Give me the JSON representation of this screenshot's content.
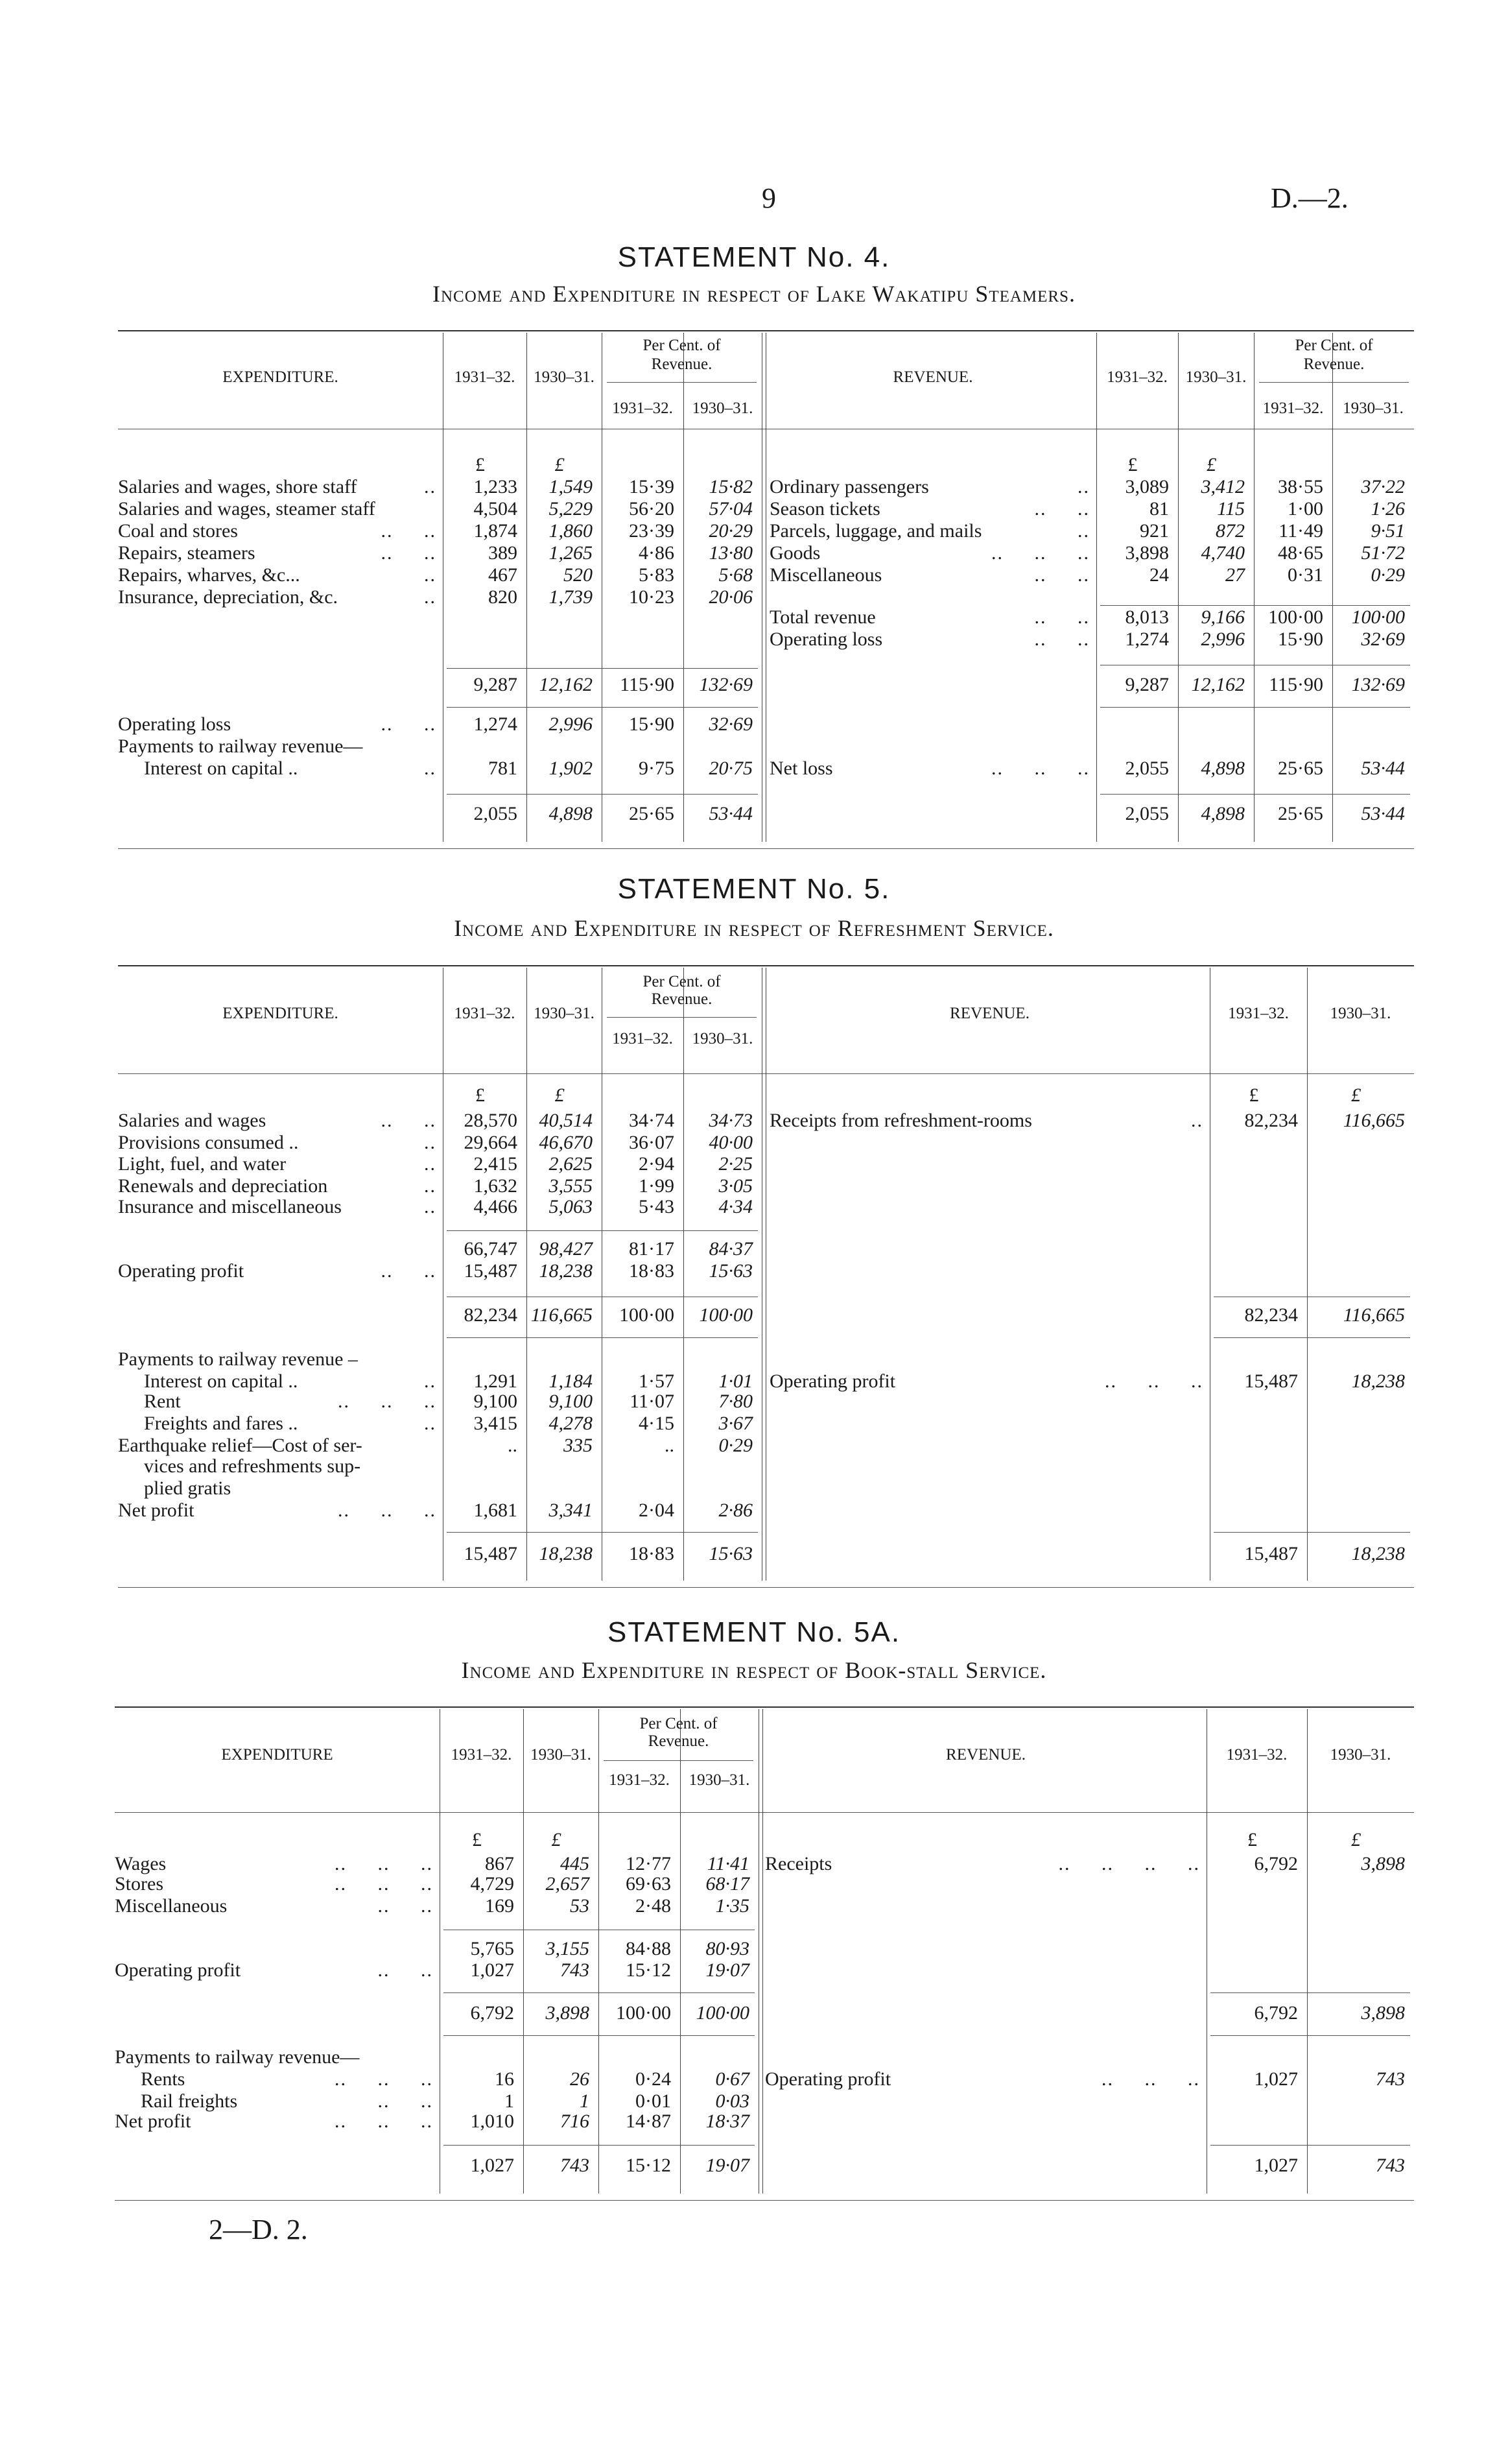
{
  "page": {
    "number": "9",
    "ref": "D.—2.",
    "footer": "2—D. 2."
  },
  "statements": [
    {
      "title": "STATEMENT No. 4.",
      "subtitle": "Income and Expenditure in respect of Lake Wakatipu Steamers.",
      "left": {
        "heading": "EXPENDITURE.",
        "years": [
          "1931–32.",
          "1930–31."
        ],
        "percent_heading": [
          "Per Cent. of",
          "Revenue."
        ],
        "percent_years": [
          "1931–32.",
          "1930–31."
        ],
        "rows": [
          {
            "label": "",
            "leader": "",
            "values": [
              "£",
              "£",
              "",
              ""
            ]
          },
          {
            "label": "Salaries and wages, shore staff",
            "leader": "..",
            "values": [
              "1,233",
              "1,549",
              "15·39",
              "15·82"
            ]
          },
          {
            "label": "Salaries and wages, steamer staff",
            "leader": "",
            "values": [
              "4,504",
              "5,229",
              "56·20",
              "57·04"
            ]
          },
          {
            "label": "Coal and stores",
            "leader": "..     ..",
            "values": [
              "1,874",
              "1,860",
              "23·39",
              "20·29"
            ]
          },
          {
            "label": "Repairs, steamers",
            "leader": "..     ..",
            "values": [
              "389",
              "1,265",
              "4·86",
              "13·80"
            ]
          },
          {
            "label": "Repairs, wharves, &c...",
            "leader": "..",
            "values": [
              "467",
              "520",
              "5·83",
              "5·68"
            ]
          },
          {
            "label": "Insurance, depreciation, &c.",
            "leader": "..",
            "values": [
              "820",
              "1,739",
              "10·23",
              "20·06"
            ]
          },
          {
            "label": "",
            "leader": "",
            "values": [
              "9,287",
              "12,162",
              "115·90",
              "132·69"
            ]
          },
          {
            "label": "Operating loss",
            "leader": "..     ..",
            "values": [
              "1,274",
              "2,996",
              "15·90",
              "32·69"
            ]
          },
          {
            "label": "Payments to railway revenue—",
            "leader": "",
            "values": [
              "",
              "",
              "",
              ""
            ]
          },
          {
            "label": "Interest on capital ..",
            "leader": "..",
            "indent": true,
            "values": [
              "781",
              "1,902",
              "9·75",
              "20·75"
            ]
          },
          {
            "label": "",
            "leader": "",
            "values": [
              "2,055",
              "4,898",
              "25·65",
              "53·44"
            ]
          }
        ]
      },
      "right": {
        "heading": "REVENUE.",
        "years": [
          "1931–32.",
          "1930–31."
        ],
        "percent_heading": [
          "Per Cent. of",
          "Revenue."
        ],
        "percent_years": [
          "1931–32.",
          "1930–31."
        ],
        "rows": [
          {
            "label": "",
            "leader": "",
            "values": [
              "£",
              "£",
              "",
              ""
            ]
          },
          {
            "label": "Ordinary passengers",
            "leader": "..",
            "values": [
              "3,089",
              "3,412",
              "38·55",
              "37·22"
            ]
          },
          {
            "label": "Season tickets",
            "leader": "..     ..",
            "values": [
              "81",
              "115",
              "1·00",
              "1·26"
            ]
          },
          {
            "label": "Parcels, luggage, and mails",
            "leader": "..",
            "values": [
              "921",
              "872",
              "11·49",
              "9·51"
            ]
          },
          {
            "label": "Goods",
            "leader": "..     ..     ..",
            "values": [
              "3,898",
              "4,740",
              "48·65",
              "51·72"
            ]
          },
          {
            "label": "Miscellaneous",
            "leader": "..     ..",
            "values": [
              "24",
              "27",
              "0·31",
              "0·29"
            ]
          },
          {
            "label": "Total revenue",
            "leader": "..     ..",
            "values": [
              "8,013",
              "9,166",
              "100·00",
              "100·00"
            ]
          },
          {
            "label": "Operating loss",
            "leader": "..     ..",
            "values": [
              "1,274",
              "2,996",
              "15·90",
              "32·69"
            ]
          },
          {
            "label": "",
            "leader": "",
            "values": [
              "9,287",
              "12,162",
              "115·90",
              "132·69"
            ]
          },
          {
            "label": "Net loss",
            "leader": "..     ..     ..",
            "values": [
              "2,055",
              "4,898",
              "25·65",
              "53·44"
            ]
          },
          {
            "label": "",
            "leader": "",
            "values": [
              "2,055",
              "4,898",
              "25·65",
              "53·44"
            ]
          }
        ]
      }
    },
    {
      "title": "STATEMENT No. 5.",
      "subtitle": "Income and Expenditure in respect of Refreshment Service.",
      "left": {
        "heading": "EXPENDITURE.",
        "years": [
          "1931–32.",
          "1930–31."
        ],
        "percent_heading": [
          "Per Cent. of",
          "Revenue."
        ],
        "percent_years": [
          "1931–32.",
          "1930–31."
        ],
        "rows": [
          {
            "label": "",
            "leader": "",
            "values": [
              "£",
              "£",
              "",
              ""
            ]
          },
          {
            "label": "Salaries and wages",
            "leader": "..     ..",
            "values": [
              "28,570",
              "40,514",
              "34·74",
              "34·73"
            ]
          },
          {
            "label": "Provisions consumed ..",
            "leader": "..",
            "values": [
              "29,664",
              "46,670",
              "36·07",
              "40·00"
            ]
          },
          {
            "label": "Light, fuel, and water",
            "leader": "..",
            "values": [
              "2,415",
              "2,625",
              "2·94",
              "2·25"
            ]
          },
          {
            "label": "Renewals and depreciation",
            "leader": "..",
            "values": [
              "1,632",
              "3,555",
              "1·99",
              "3·05"
            ]
          },
          {
            "label": "Insurance and miscellaneous",
            "leader": "..",
            "values": [
              "4,466",
              "5,063",
              "5·43",
              "4·34"
            ]
          },
          {
            "label": "",
            "leader": "",
            "values": [
              "66,747",
              "98,427",
              "81·17",
              "84·37"
            ]
          },
          {
            "label": "Operating profit",
            "leader": "..     ..",
            "values": [
              "15,487",
              "18,238",
              "18·83",
              "15·63"
            ]
          },
          {
            "label": "",
            "leader": "",
            "values": [
              "82,234",
              "116,665",
              "100·00",
              "100·00"
            ]
          },
          {
            "label": "Payments to railway revenue –",
            "leader": "",
            "values": [
              "",
              "",
              "",
              ""
            ]
          },
          {
            "label": "Interest on capital ..",
            "leader": "..",
            "indent": true,
            "values": [
              "1,291",
              "1,184",
              "1·57",
              "1·01"
            ]
          },
          {
            "label": "Rent",
            "leader": "..     ..     ..",
            "indent": true,
            "values": [
              "9,100",
              "9,100",
              "11·07",
              "7·80"
            ]
          },
          {
            "label": "Freights and fares ..",
            "leader": "..",
            "indent": true,
            "values": [
              "3,415",
              "4,278",
              "4·15",
              "3·67"
            ]
          },
          {
            "label": "Earthquake relief—Cost of ser-",
            "leader": "",
            "values": [
              "..",
              "335",
              "..",
              "0·29"
            ]
          },
          {
            "label": "vices and refreshments sup-",
            "leader": "",
            "indent": true,
            "values": [
              "",
              "",
              "",
              ""
            ]
          },
          {
            "label": "plied gratis",
            "leader": "",
            "indent": true,
            "values": [
              "",
              "",
              "",
              ""
            ]
          },
          {
            "label": "Net profit",
            "leader": "..     ..     ..",
            "values": [
              "1,681",
              "3,341",
              "2·04",
              "2·86"
            ]
          },
          {
            "label": "",
            "leader": "",
            "values": [
              "15,487",
              "18,238",
              "18·83",
              "15·63"
            ]
          }
        ]
      },
      "right": {
        "heading": "REVENUE.",
        "years": [
          "1931–32.",
          "1930–31."
        ],
        "rows": [
          {
            "label": "",
            "leader": "",
            "values": [
              "£",
              "£"
            ]
          },
          {
            "label": "Receipts from refreshment-rooms",
            "leader": "..",
            "values": [
              "82,234",
              "116,665"
            ]
          },
          {
            "label": "",
            "leader": "",
            "values": [
              "82,234",
              "116,665"
            ]
          },
          {
            "label": "Operating profit",
            "leader": "..     ..     ..",
            "values": [
              "15,487",
              "18,238"
            ]
          },
          {
            "label": "",
            "leader": "",
            "values": [
              "15,487",
              "18,238"
            ]
          }
        ]
      }
    },
    {
      "title": "STATEMENT No. 5A.",
      "subtitle": "Income and Expenditure in respect of Book-stall Service.",
      "left": {
        "heading": "EXPENDITURE",
        "years": [
          "1931–32.",
          "1930–31."
        ],
        "percent_heading": [
          "Per Cent. of",
          "Revenue."
        ],
        "percent_years": [
          "1931–32.",
          "1930–31."
        ],
        "rows": [
          {
            "label": "",
            "leader": "",
            "values": [
              "£",
              "£",
              "",
              ""
            ]
          },
          {
            "label": "Wages",
            "leader": "..     ..     ..",
            "values": [
              "867",
              "445",
              "12·77",
              "11·41"
            ]
          },
          {
            "label": "Stores",
            "leader": "..     ..     ..",
            "values": [
              "4,729",
              "2,657",
              "69·63",
              "68·17"
            ]
          },
          {
            "label": "Miscellaneous",
            "leader": "..     ..",
            "values": [
              "169",
              "53",
              "2·48",
              "1·35"
            ]
          },
          {
            "label": "",
            "leader": "",
            "values": [
              "5,765",
              "3,155",
              "84·88",
              "80·93"
            ]
          },
          {
            "label": "Operating profit",
            "leader": "..     ..",
            "values": [
              "1,027",
              "743",
              "15·12",
              "19·07"
            ]
          },
          {
            "label": "",
            "leader": "",
            "values": [
              "6,792",
              "3,898",
              "100·00",
              "100·00"
            ]
          },
          {
            "label": "Payments to railway revenue—",
            "leader": "",
            "values": [
              "",
              "",
              "",
              ""
            ]
          },
          {
            "label": "Rents",
            "leader": "..     ..     ..",
            "indent": true,
            "values": [
              "16",
              "26",
              "0·24",
              "0·67"
            ]
          },
          {
            "label": "Rail freights",
            "leader": "..     ..",
            "indent": true,
            "values": [
              "1",
              "1",
              "0·01",
              "0·03"
            ]
          },
          {
            "label": "Net profit",
            "leader": "..     ..     ..",
            "values": [
              "1,010",
              "716",
              "14·87",
              "18·37"
            ]
          },
          {
            "label": "",
            "leader": "",
            "values": [
              "1,027",
              "743",
              "15·12",
              "19·07"
            ]
          }
        ]
      },
      "right": {
        "heading": "REVENUE.",
        "years": [
          "1931–32.",
          "1930–31."
        ],
        "rows": [
          {
            "label": "",
            "leader": "",
            "values": [
              "£",
              "£"
            ]
          },
          {
            "label": "Receipts",
            "leader": "..     ..     ..     ..",
            "values": [
              "6,792",
              "3,898"
            ]
          },
          {
            "label": "",
            "leader": "",
            "values": [
              "6,792",
              "3,898"
            ]
          },
          {
            "label": "Operating profit",
            "leader": "..     ..     ..",
            "values": [
              "1,027",
              "743"
            ]
          },
          {
            "label": "",
            "leader": "",
            "values": [
              "1,027",
              "743"
            ]
          }
        ]
      }
    }
  ]
}
